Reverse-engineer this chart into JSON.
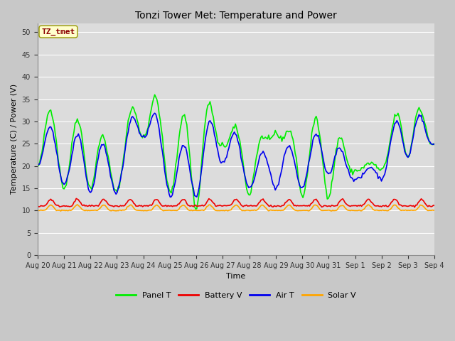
{
  "title": "Tonzi Tower Met: Temperature and Power",
  "xlabel": "Time",
  "ylabel": "Temperature (C) / Power (V)",
  "ylim": [
    0,
    52
  ],
  "yticks": [
    0,
    5,
    10,
    15,
    20,
    25,
    30,
    35,
    40,
    45,
    50
  ],
  "annotation_text": "TZ_tmet",
  "annotation_color": "#8B0000",
  "annotation_bg": "#FFFFCC",
  "annotation_edge": "#999900",
  "bg_color": "#E8E8E8",
  "plot_bg": "#DCDCDC",
  "grid_color": "#FFFFFF",
  "colors": {
    "panel_t": "#00EE00",
    "battery_v": "#EE0000",
    "air_t": "#0000EE",
    "solar_v": "#FFA500"
  },
  "x_labels": [
    "Aug 20",
    "Aug 21",
    "Aug 22",
    "Aug 23",
    "Aug 24",
    "Aug 25",
    "Aug 26",
    "Aug 27",
    "Aug 28",
    "Aug 29",
    "Aug 30",
    "Aug 31",
    "Sep 1",
    "Sep 2",
    "Sep 3",
    "Sep 4"
  ],
  "num_days": 15,
  "points_per_day": 24,
  "fig_width": 6.4,
  "fig_height": 4.8,
  "dpi": 100,
  "linewidth": 1.2,
  "title_fontsize": 10,
  "axis_fontsize": 8,
  "tick_fontsize": 7,
  "legend_fontsize": 8
}
